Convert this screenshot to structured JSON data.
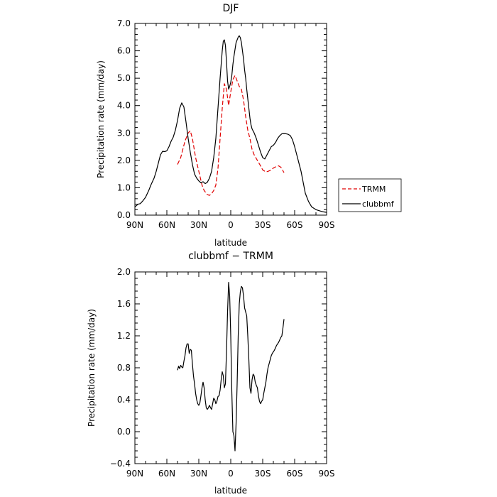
{
  "chart_data": [
    {
      "type": "line",
      "title": "DJF",
      "xlabel": "latitude",
      "ylabel": "Precipitation rate (mm/day)",
      "xlim": [
        90,
        -90
      ],
      "ylim": [
        0,
        7
      ],
      "x_ticks": [
        90,
        60,
        30,
        0,
        -30,
        -60,
        -90
      ],
      "x_tick_labels": [
        "90N",
        "60N",
        "30N",
        "0",
        "30S",
        "60S",
        "90S"
      ],
      "y_ticks": [
        0,
        1,
        2,
        3,
        4,
        5,
        6,
        7
      ],
      "y_tick_labels": [
        "0.0",
        "1.0",
        "2.0",
        "3.0",
        "4.0",
        "5.0",
        "6.0",
        "7.0"
      ],
      "grid": false,
      "legend_position": "right",
      "series": [
        {
          "name": "TRMM",
          "color": "#e00000",
          "dash": "dashed",
          "x": [
            50,
            47,
            45,
            43,
            40,
            38,
            36,
            33,
            30,
            27,
            25,
            22,
            20,
            18,
            16,
            14,
            12,
            10,
            8,
            6,
            4,
            2,
            0,
            -2,
            -4,
            -6,
            -8,
            -10,
            -12,
            -14,
            -16,
            -18,
            -20,
            -22,
            -25,
            -28,
            -30,
            -33,
            -35,
            -38,
            -40,
            -43,
            -45,
            -47,
            -48,
            -49,
            -50
          ],
          "y": [
            1.85,
            2.1,
            2.4,
            2.7,
            3.0,
            3.08,
            2.8,
            2.1,
            1.6,
            1.1,
            0.9,
            0.75,
            0.72,
            0.78,
            0.9,
            1.1,
            1.7,
            2.8,
            3.9,
            4.8,
            4.6,
            4.0,
            4.5,
            4.95,
            5.1,
            4.9,
            4.7,
            4.6,
            4.2,
            3.6,
            3.1,
            2.8,
            2.4,
            2.2,
            2.0,
            1.8,
            1.65,
            1.58,
            1.6,
            1.65,
            1.72,
            1.78,
            1.8,
            1.75,
            1.7,
            1.62,
            1.55
          ]
        },
        {
          "name": "clubbmf",
          "color": "#000000",
          "dash": "solid",
          "x": [
            90,
            87,
            85,
            83,
            80,
            77,
            75,
            72,
            70,
            68,
            66,
            64,
            62,
            60,
            58,
            56,
            54,
            52,
            50,
            48,
            46,
            44,
            42,
            40,
            38,
            36,
            34,
            32,
            30,
            28,
            26,
            24,
            22,
            20,
            18,
            16,
            14,
            12,
            10,
            8,
            7,
            6,
            5,
            4,
            3,
            2,
            1,
            0,
            -1,
            -2,
            -3,
            -5,
            -7,
            -8,
            -9,
            -10,
            -11,
            -12,
            -13,
            -14,
            -15,
            -16,
            -17,
            -18,
            -19,
            -20,
            -22,
            -24,
            -26,
            -28,
            -30,
            -32,
            -34,
            -36,
            -38,
            -40,
            -42,
            -44,
            -46,
            -48,
            -50,
            -52,
            -54,
            -56,
            -58,
            -60,
            -62,
            -64,
            -66,
            -68,
            -70,
            -73,
            -76,
            -80,
            -84,
            -87,
            -90
          ],
          "y": [
            0.3,
            0.4,
            0.42,
            0.5,
            0.65,
            0.9,
            1.1,
            1.35,
            1.6,
            1.9,
            2.2,
            2.33,
            2.32,
            2.35,
            2.5,
            2.7,
            2.85,
            3.1,
            3.45,
            3.9,
            4.1,
            3.95,
            3.4,
            2.8,
            2.3,
            1.85,
            1.5,
            1.35,
            1.25,
            1.18,
            1.22,
            1.15,
            1.2,
            1.35,
            1.6,
            2.1,
            2.8,
            3.9,
            5.0,
            6.0,
            6.35,
            6.4,
            6.2,
            5.6,
            4.9,
            4.6,
            4.7,
            4.85,
            5.1,
            5.5,
            5.8,
            6.3,
            6.5,
            6.55,
            6.48,
            6.3,
            6.0,
            5.7,
            5.3,
            5.0,
            4.6,
            4.25,
            3.9,
            3.55,
            3.3,
            3.15,
            3.0,
            2.8,
            2.55,
            2.3,
            2.1,
            2.05,
            2.2,
            2.35,
            2.5,
            2.55,
            2.65,
            2.8,
            2.9,
            2.97,
            2.98,
            2.97,
            2.95,
            2.9,
            2.75,
            2.5,
            2.2,
            1.9,
            1.6,
            1.2,
            0.8,
            0.5,
            0.3,
            0.2,
            0.15,
            0.12,
            0.1
          ]
        }
      ]
    },
    {
      "type": "line",
      "title": "clubbmf − TRMM",
      "xlabel": "latitude",
      "ylabel": "Precipitation rate (mm/day)",
      "xlim": [
        90,
        -90
      ],
      "ylim": [
        -0.4,
        2.0
      ],
      "x_ticks": [
        90,
        60,
        30,
        0,
        -30,
        -60,
        -90
      ],
      "x_tick_labels": [
        "90N",
        "60N",
        "30N",
        "0",
        "30S",
        "60S",
        "90S"
      ],
      "y_ticks": [
        -0.4,
        0,
        0.4,
        0.8,
        1.2,
        1.6,
        2.0
      ],
      "y_tick_labels": [
        "−0.4",
        "0.0",
        "0.4",
        "0.8",
        "1.2",
        "1.6",
        "2.0"
      ],
      "grid": false,
      "series": [
        {
          "color": "#000000",
          "dash": "solid",
          "x": [
            50,
            49,
            48,
            47,
            46,
            45,
            44,
            43,
            42,
            41,
            40,
            39,
            38,
            37,
            36,
            35,
            34,
            33,
            32,
            31,
            30,
            29,
            28,
            27,
            26,
            25,
            24,
            23,
            22,
            21,
            20,
            19,
            18,
            17,
            16,
            15,
            14,
            13,
            12,
            11,
            10,
            9,
            8,
            7,
            6,
            5,
            4,
            3,
            2,
            1,
            0,
            -1,
            -2,
            -3,
            -4,
            -5,
            -6,
            -7,
            -8,
            -9,
            -10,
            -11,
            -12,
            -13,
            -14,
            -15,
            -16,
            -17,
            -18,
            -19,
            -20,
            -21,
            -22,
            -23,
            -24,
            -25,
            -26,
            -27,
            -28,
            -29,
            -30,
            -31,
            -32,
            -33,
            -34,
            -35,
            -36,
            -37,
            -38,
            -39,
            -40,
            -41,
            -42,
            -43,
            -44,
            -45,
            -46,
            -47,
            -48,
            -49,
            -50
          ],
          "y": [
            0.77,
            0.82,
            0.79,
            0.83,
            0.81,
            0.8,
            0.88,
            0.95,
            1.05,
            1.1,
            1.1,
            0.98,
            1.03,
            1.02,
            0.85,
            0.7,
            0.6,
            0.48,
            0.4,
            0.35,
            0.33,
            0.36,
            0.45,
            0.55,
            0.62,
            0.55,
            0.4,
            0.3,
            0.28,
            0.3,
            0.33,
            0.3,
            0.28,
            0.35,
            0.42,
            0.4,
            0.35,
            0.38,
            0.44,
            0.45,
            0.52,
            0.65,
            0.75,
            0.7,
            0.55,
            0.6,
            1.0,
            1.5,
            1.87,
            1.7,
            1.2,
            0.5,
            0.0,
            -0.05,
            -0.24,
            0.1,
            0.6,
            1.2,
            1.6,
            1.75,
            1.82,
            1.8,
            1.7,
            1.55,
            1.5,
            1.45,
            1.2,
            0.9,
            0.55,
            0.48,
            0.65,
            0.72,
            0.7,
            0.62,
            0.58,
            0.55,
            0.45,
            0.38,
            0.35,
            0.38,
            0.4,
            0.48,
            0.55,
            0.62,
            0.72,
            0.8,
            0.85,
            0.9,
            0.95,
            0.98,
            1.0,
            1.02,
            1.05,
            1.08,
            1.1,
            1.12,
            1.15,
            1.18,
            1.2,
            1.3,
            1.41
          ]
        }
      ]
    }
  ]
}
